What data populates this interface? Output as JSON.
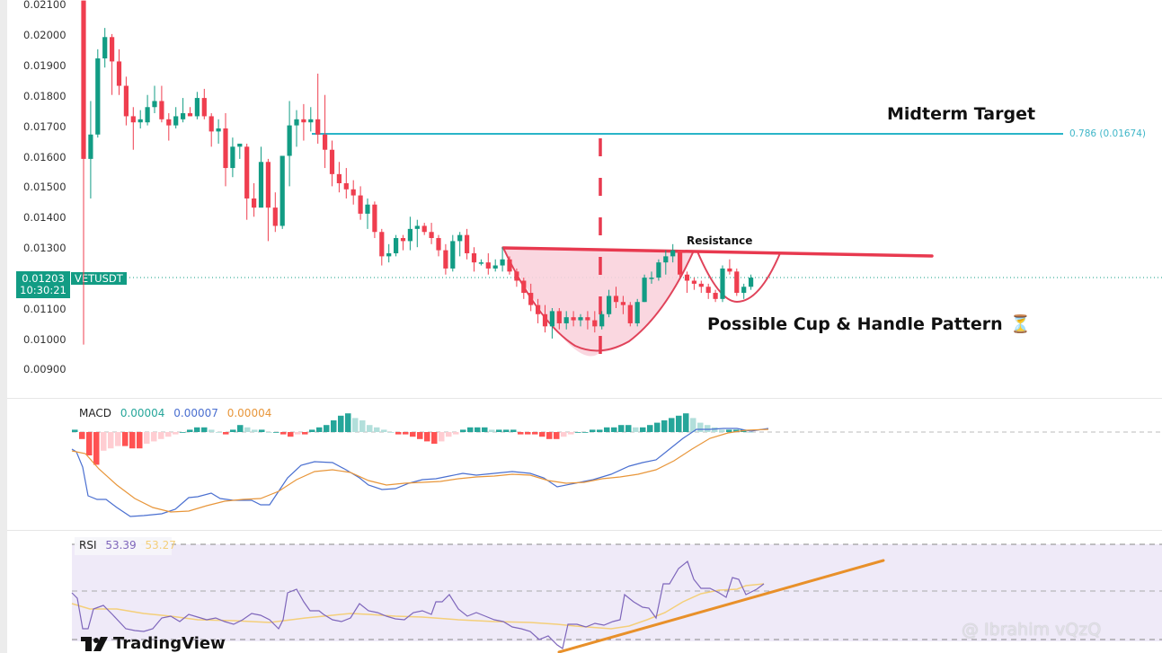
{
  "symbol": "VETUSDT",
  "current_price": "0.01203",
  "countdown": "10:30:21",
  "annotations": {
    "midterm_target": "Midterm Target",
    "fib_level": "0.786 (0.01674)",
    "resistance": "Resistance",
    "pattern": "Possible Cup & Handle Pattern",
    "pattern_icon": "⏳"
  },
  "macd_legend": {
    "label": "MACD",
    "hist": "0.00004",
    "macd": "0.00007",
    "signal": "0.00004"
  },
  "rsi_legend": {
    "label": "RSI",
    "rsi": "53.39",
    "ma": "53.27"
  },
  "branding": {
    "logo_text": "TradingView",
    "watermark": "@ Ibrahim vQzQ"
  },
  "colors": {
    "up": "#129c84",
    "down": "#ef3e4f",
    "fib": "#2ab5c8",
    "macd": "#4a6fd0",
    "signal": "#e8963a",
    "rsi": "#7e66bb",
    "rsi_ma": "#f4cf7a",
    "trend": "#e8902a",
    "cup_fill": "#fad3dd"
  },
  "chart_data": [
    {
      "type": "candlestick",
      "title": "VETUSDT",
      "yaxis_ticks": [
        "0.02100",
        "0.02000",
        "0.01900",
        "0.01800",
        "0.01700",
        "0.01600",
        "0.01500",
        "0.01400",
        "0.01300",
        "0.01100",
        "0.01000",
        "0.00900"
      ],
      "ylim": [
        0.0087,
        0.0211
      ],
      "last_price": 0.01203,
      "horizontal_lines": [
        {
          "label": "0.786 (0.01674)",
          "value": 0.01674
        }
      ],
      "candles_ohlc": [
        [
          0.0211,
          0.0211,
          0.0098,
          0.0159
        ],
        [
          0.0159,
          0.0178,
          0.0146,
          0.0167
        ],
        [
          0.0167,
          0.0195,
          0.0166,
          0.0192
        ],
        [
          0.0192,
          0.0202,
          0.0189,
          0.0199
        ],
        [
          0.0199,
          0.02,
          0.018,
          0.0191
        ],
        [
          0.0191,
          0.0195,
          0.018,
          0.0183
        ],
        [
          0.0183,
          0.0186,
          0.017,
          0.0173
        ],
        [
          0.0173,
          0.0176,
          0.0162,
          0.0171
        ],
        [
          0.0171,
          0.0175,
          0.0169,
          0.0172
        ],
        [
          0.0171,
          0.018,
          0.017,
          0.0176
        ],
        [
          0.0176,
          0.0183,
          0.0174,
          0.0178
        ],
        [
          0.0178,
          0.0183,
          0.0171,
          0.0172
        ],
        [
          0.0172,
          0.0174,
          0.0165,
          0.017
        ],
        [
          0.017,
          0.0176,
          0.0169,
          0.0173
        ],
        [
          0.0172,
          0.0179,
          0.0171,
          0.0174
        ],
        [
          0.0174,
          0.0176,
          0.0173,
          0.0173
        ],
        [
          0.0173,
          0.0181,
          0.0172,
          0.0179
        ],
        [
          0.0179,
          0.0182,
          0.0172,
          0.0173
        ],
        [
          0.0173,
          0.0174,
          0.0163,
          0.0168
        ],
        [
          0.0168,
          0.0172,
          0.0164,
          0.0169
        ],
        [
          0.0169,
          0.0174,
          0.015,
          0.0156
        ],
        [
          0.0156,
          0.0166,
          0.0153,
          0.0163
        ],
        [
          0.0163,
          0.0163,
          0.0159,
          0.0164
        ],
        [
          0.0163,
          0.0164,
          0.0139,
          0.0146
        ],
        [
          0.0146,
          0.0151,
          0.014,
          0.0143
        ],
        [
          0.0143,
          0.0163,
          0.0143,
          0.0158
        ],
        [
          0.0158,
          0.0159,
          0.0132,
          0.0143
        ],
        [
          0.0143,
          0.0148,
          0.0135,
          0.0137
        ],
        [
          0.0137,
          0.0158,
          0.0136,
          0.016
        ],
        [
          0.016,
          0.0178,
          0.015,
          0.017
        ],
        [
          0.017,
          0.0175,
          0.0163,
          0.0172
        ],
        [
          0.0172,
          0.0177,
          0.0165,
          0.0171
        ],
        [
          0.0171,
          0.0176,
          0.0168,
          0.0172
        ],
        [
          0.0172,
          0.0187,
          0.0164,
          0.0167
        ],
        [
          0.0167,
          0.018,
          0.0156,
          0.0162
        ]
      ]
    },
    {
      "type": "bar+line",
      "title": "MACD",
      "series": [
        {
          "name": "Histogram",
          "legend_value": "0.00004"
        },
        {
          "name": "MACD",
          "legend_value": "0.00007"
        },
        {
          "name": "Signal",
          "legend_value": "0.00004"
        }
      ]
    },
    {
      "type": "line",
      "title": "RSI",
      "series": [
        {
          "name": "RSI",
          "legend_value": "53.39"
        },
        {
          "name": "RSI-based MA",
          "legend_value": "53.27"
        }
      ],
      "bands": [
        70,
        50,
        30
      ]
    }
  ]
}
